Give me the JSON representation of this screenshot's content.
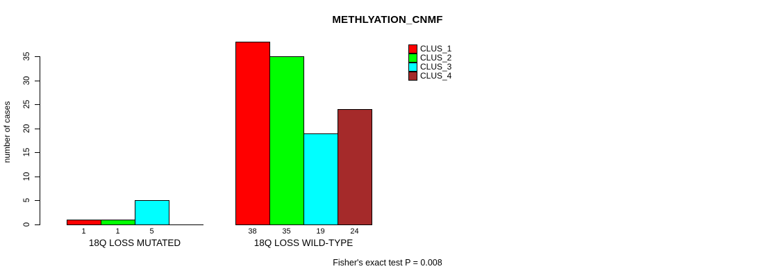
{
  "chart_data": {
    "type": "bar",
    "title": "METHLYATION_CNMF",
    "ylabel": "number of cases",
    "xlabel": "",
    "ylim": [
      0,
      38
    ],
    "yticks": [
      0,
      5,
      10,
      15,
      20,
      25,
      30,
      35
    ],
    "grid": false,
    "legend_position": "top-right",
    "categories": [
      "18Q LOSS MUTATED",
      "18Q LOSS WILD-TYPE"
    ],
    "series": [
      {
        "name": "CLUS_1",
        "color": "#FF0000",
        "values": [
          1,
          38
        ]
      },
      {
        "name": "CLUS_2",
        "color": "#00FF00",
        "values": [
          1,
          35
        ]
      },
      {
        "name": "CLUS_3",
        "color": "#00FFFF",
        "values": [
          5,
          19
        ]
      },
      {
        "name": "CLUS_4",
        "color": "#A52A2A",
        "values": [
          0,
          24
        ]
      }
    ],
    "bar_value_labels": [
      [
        "1",
        "1",
        "5",
        ""
      ],
      [
        "38",
        "35",
        "19",
        "24"
      ]
    ],
    "annotation": "Fisher's exact test P = 0.008"
  }
}
